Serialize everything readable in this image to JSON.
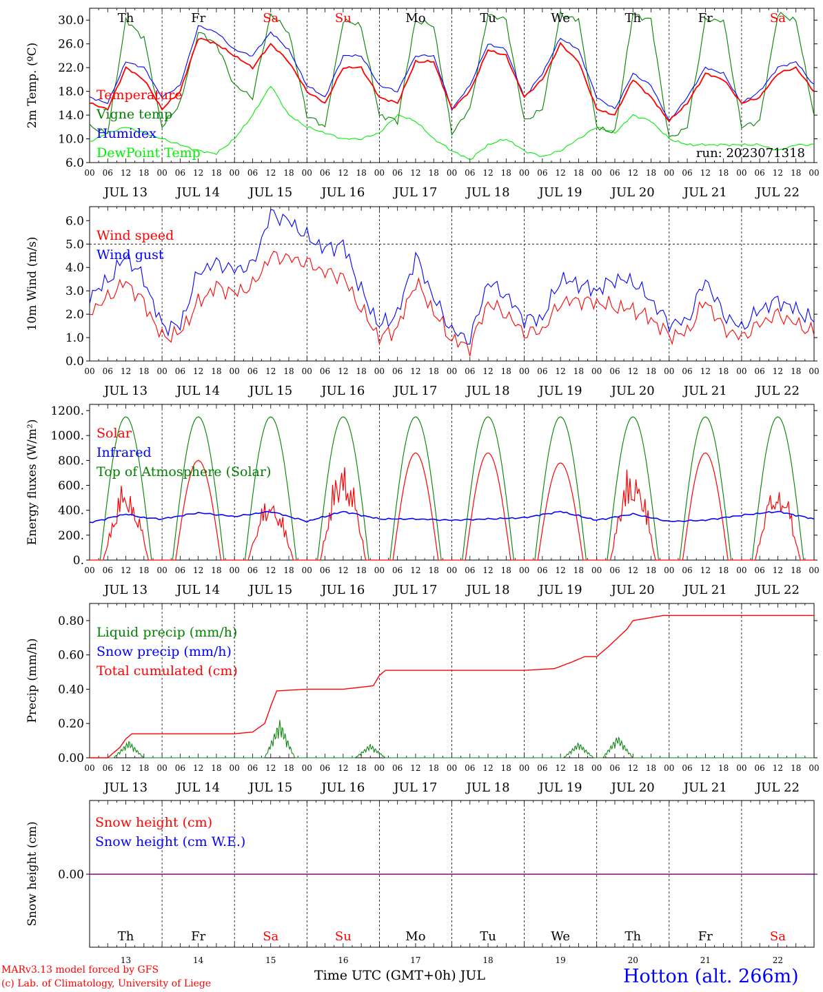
{
  "days": {
    "names": [
      "Th",
      "Fr",
      "Sa",
      "Su",
      "Mo",
      "Tu",
      "We",
      "Th",
      "Fr",
      "Sa"
    ],
    "weekend": [
      false,
      false,
      true,
      true,
      false,
      false,
      false,
      false,
      false,
      true
    ],
    "dates": [
      "JUL 13",
      "JUL 14",
      "JUL 15",
      "JUL 16",
      "JUL 17",
      "JUL 18",
      "JUL 19",
      "JUL 20",
      "JUL 21",
      "JUL 22"
    ],
    "numbers": [
      "13",
      "14",
      "15",
      "16",
      "17",
      "18",
      "19",
      "20",
      "21",
      "22"
    ],
    "hour_ticks": [
      "00",
      "06",
      "12",
      "18"
    ],
    "final_hour": "00"
  },
  "colors": {
    "red": "#ff0000",
    "green": "#008000",
    "blue": "#0000ff",
    "lightgreen": "#00ee00",
    "purple": "#800080"
  },
  "chart_data": [
    {
      "type": "line",
      "ylabel": "2m Temp. (ºC)",
      "ylim": [
        6,
        32
      ],
      "yticks": [
        "6.0",
        "10.0",
        "14.0",
        "18.0",
        "22.0",
        "26.0",
        "30.0"
      ],
      "grid": false,
      "legend_placement": "top-left",
      "annotation": "run: 2023071318",
      "x": [
        0,
        6,
        12,
        18,
        24,
        30,
        36,
        42,
        48,
        54,
        60,
        66,
        72,
        78,
        84,
        90,
        96,
        102,
        108,
        114,
        120,
        126,
        132,
        138,
        144,
        150,
        156,
        162,
        168,
        174,
        180,
        186,
        192,
        198,
        204,
        210,
        216,
        222,
        228,
        234,
        240
      ],
      "series": [
        {
          "name": "Temperature",
          "color": "red",
          "values": [
            16,
            15,
            22,
            20,
            15,
            18,
            27,
            26,
            24,
            22,
            26,
            23,
            18,
            16,
            22,
            22,
            17,
            16,
            23,
            23,
            15,
            18,
            25,
            24,
            17,
            20,
            26,
            23,
            15,
            14,
            20,
            17,
            13,
            16,
            21,
            20,
            16,
            17,
            21,
            22,
            18
          ]
        },
        {
          "name": "Vigne temp",
          "color": "green",
          "values": [
            12,
            11,
            30,
            27,
            12,
            16,
            28,
            26,
            19,
            17,
            31,
            28,
            14,
            12,
            30,
            29,
            14,
            13,
            30,
            29,
            11,
            15,
            31,
            30,
            13,
            15,
            31,
            30,
            12,
            11,
            31,
            30,
            10,
            12,
            30,
            30,
            12,
            13,
            31,
            30,
            14
          ]
        },
        {
          "name": "Humidex",
          "color": "blue",
          "values": [
            17,
            16,
            23,
            22,
            17,
            19,
            29,
            28,
            25,
            24,
            28,
            25,
            19,
            17,
            24,
            24,
            19,
            18,
            24,
            24,
            15,
            19,
            26,
            25,
            17,
            21,
            27,
            25,
            17,
            15,
            21,
            19,
            13,
            17,
            22,
            21,
            16,
            18,
            22,
            23,
            19
          ]
        },
        {
          "name": "DewPoint Temp",
          "color": "lightgreen",
          "values": [
            9.5,
            11,
            12,
            11,
            10,
            9,
            8,
            7.5,
            10,
            14,
            19,
            14,
            12,
            11,
            10,
            10,
            11,
            14,
            13,
            10,
            8,
            6.5,
            9,
            10,
            8,
            7,
            8,
            10,
            12,
            11,
            14,
            13,
            10,
            9,
            9,
            9,
            9,
            9,
            8,
            9,
            9
          ]
        }
      ]
    },
    {
      "type": "line",
      "ylabel": "10m Wind (m/s)",
      "ylim": [
        0,
        6.6
      ],
      "yticks": [
        "0.0",
        "1.0",
        "2.0",
        "3.0",
        "4.0",
        "5.0",
        "6.0"
      ],
      "reference_line": 5,
      "legend_placement": "top-left",
      "x": [
        0,
        6,
        12,
        18,
        24,
        30,
        36,
        42,
        48,
        54,
        60,
        66,
        72,
        78,
        84,
        90,
        96,
        102,
        108,
        114,
        120,
        126,
        132,
        138,
        144,
        150,
        156,
        162,
        168,
        174,
        180,
        186,
        192,
        198,
        204,
        210,
        216,
        222,
        228,
        234,
        240
      ],
      "series": [
        {
          "name": "Wind speed",
          "color": "red",
          "values": [
            2.1,
            2.7,
            3.4,
            2.5,
            1.0,
            1.2,
            2.5,
            3.2,
            2.9,
            3.2,
            4.5,
            4.4,
            4.2,
            3.8,
            3.6,
            2.2,
            1.0,
            1.4,
            3.4,
            2.1,
            0.9,
            0.6,
            2.5,
            2.0,
            1.2,
            1.3,
            2.5,
            2.6,
            2.5,
            2.3,
            2.2,
            1.8,
            1.1,
            1.2,
            2.6,
            1.4,
            1.0,
            1.6,
            2.0,
            1.6,
            1.2
          ]
        },
        {
          "name": "Wind gust",
          "color": "blue",
          "values": [
            2.8,
            3.4,
            4.5,
            3.5,
            1.5,
            1.5,
            3.8,
            4.2,
            3.9,
            4.1,
            6.3,
            6.0,
            5.3,
            4.8,
            5.0,
            3.0,
            1.5,
            2.0,
            4.5,
            2.7,
            1.3,
            0.9,
            3.4,
            2.8,
            1.8,
            1.8,
            3.5,
            3.3,
            3.0,
            3.5,
            3.4,
            2.6,
            1.6,
            1.7,
            3.5,
            2.0,
            1.4,
            2.2,
            2.6,
            2.2,
            1.7
          ]
        }
      ]
    },
    {
      "type": "line",
      "ylabel": "Energy fluxes (W/m²)",
      "ylim": [
        0,
        1250
      ],
      "yticks": [
        "0.",
        "200.",
        "400.",
        "600.",
        "800.",
        "1000.",
        "1200."
      ],
      "legend_placement": "top-left",
      "solar_daily_peak": [
        650,
        800,
        550,
        860,
        860,
        860,
        780,
        820,
        860,
        680
      ],
      "toa_daily_peak": 1150,
      "infrared_x": [
        0,
        12,
        18,
        24,
        36,
        48,
        60,
        72,
        84,
        96,
        108,
        120,
        132,
        144,
        156,
        168,
        180,
        192,
        204,
        216,
        228,
        240
      ],
      "series": [
        {
          "name": "Solar",
          "color": "red"
        },
        {
          "name": "Infrared",
          "color": "blue",
          "values": [
            300,
            370,
            340,
            330,
            380,
            350,
            390,
            310,
            390,
            330,
            330,
            320,
            330,
            340,
            390,
            320,
            370,
            310,
            320,
            360,
            390,
            330
          ]
        },
        {
          "name": "Top of Atmosphere (Solar)",
          "color": "green"
        }
      ]
    },
    {
      "type": "line",
      "ylabel": "Precip (mm/h)",
      "ylim": [
        0,
        0.9
      ],
      "yticks": [
        "0.00",
        "0.20",
        "0.40",
        "0.60",
        "0.80"
      ],
      "legend_placement": "top-left",
      "cum_x": [
        0,
        6,
        10,
        12,
        14,
        24,
        36,
        48,
        54,
        58,
        60,
        62,
        72,
        84,
        94,
        96,
        98,
        108,
        120,
        144,
        154,
        160,
        164,
        168,
        172,
        178,
        180,
        190,
        216,
        240
      ],
      "series": [
        {
          "name": "Liquid precip (mm/h)",
          "color": "green",
          "events": [
            [
              13,
              0.1
            ],
            [
              63,
              0.22
            ],
            [
              93,
              0.08
            ],
            [
              162,
              0.09
            ],
            [
              175,
              0.13
            ]
          ]
        },
        {
          "name": "Snow precip (mm/h)",
          "color": "blue",
          "values": []
        },
        {
          "name": "Total cumulated (cm)",
          "color": "red",
          "values": [
            0,
            0,
            0.06,
            0.11,
            0.14,
            0.14,
            0.14,
            0.14,
            0.15,
            0.2,
            0.3,
            0.39,
            0.4,
            0.4,
            0.42,
            0.48,
            0.51,
            0.51,
            0.51,
            0.51,
            0.52,
            0.56,
            0.59,
            0.59,
            0.65,
            0.75,
            0.8,
            0.83,
            0.83,
            0.83
          ]
        }
      ]
    },
    {
      "type": "line",
      "ylabel": "Snow height (cm)",
      "yticks": [
        "0.00"
      ],
      "legend_placement": "top-left",
      "series": [
        {
          "name": "Snow height (cm)",
          "color": "red",
          "values": [
            0,
            0
          ]
        },
        {
          "name": "Snow height (cm W.E.)",
          "color": "blue",
          "values": [
            0,
            0
          ]
        }
      ]
    }
  ],
  "footer": {
    "xlabel": "Time UTC (GMT+0h) JUL",
    "credit1": "MARv3.13 model forced by GFS",
    "credit2": "(c) Lab. of Climatology, University of Liege",
    "location": "Hotton (alt. 266m)"
  }
}
